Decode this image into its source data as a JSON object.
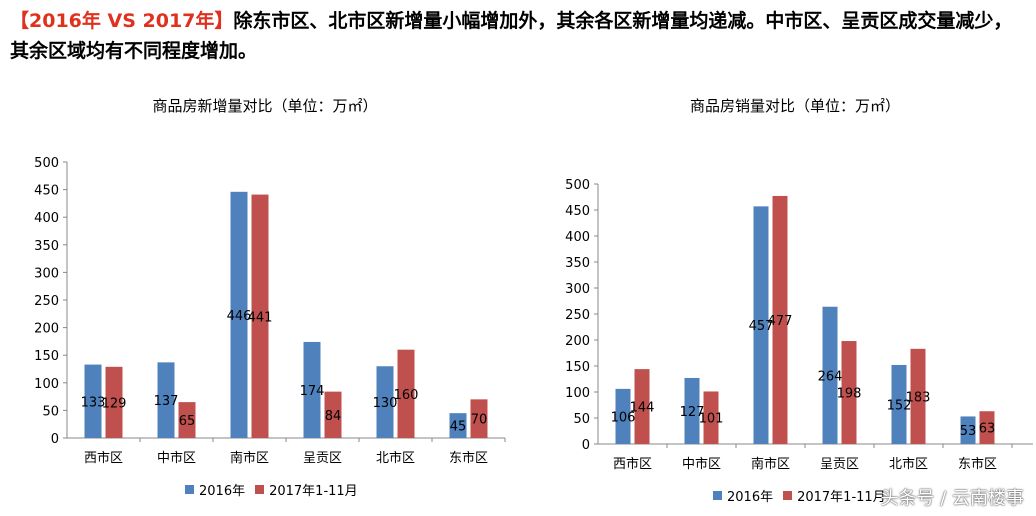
{
  "headline": {
    "accent": "【2016年 VS 2017年】",
    "text": "除东市区、北市区新增量小幅增加外，其余各区新增量均递减。中市区、呈贡区成交量减少，其余区域均有不同程度增加。"
  },
  "colors": {
    "series1": "#4f81bd",
    "series2": "#c0504d",
    "axis": "#888888"
  },
  "legend": {
    "series1": "2016年",
    "series2": "2017年1-11月"
  },
  "watermark": "头条号 / 云南楼事",
  "chart_data": [
    {
      "type": "bar",
      "title": "商品房新增量对比（单位：万㎡）",
      "categories": [
        "西市区",
        "中市区",
        "南市区",
        "呈贡区",
        "北市区",
        "东市区"
      ],
      "series": [
        {
          "name": "2016年",
          "values": [
            133,
            137,
            446,
            174,
            130,
            45
          ]
        },
        {
          "name": "2017年1-11月",
          "values": [
            129,
            65,
            441,
            84,
            160,
            70
          ]
        }
      ],
      "ylim": [
        0,
        500
      ],
      "yticks": [
        0,
        50,
        100,
        150,
        200,
        250,
        300,
        350,
        400,
        450,
        500
      ],
      "grid": false,
      "legend_position": "bottom"
    },
    {
      "type": "bar",
      "title": "商品房销量对比（单位：万㎡）",
      "categories": [
        "西市区",
        "中市区",
        "南市区",
        "呈贡区",
        "北市区",
        "东市区"
      ],
      "series": [
        {
          "name": "2016年",
          "values": [
            106,
            127,
            457,
            264,
            152,
            53
          ]
        },
        {
          "name": "2017年1-11月",
          "values": [
            144,
            101,
            477,
            198,
            183,
            63
          ]
        }
      ],
      "ylim": [
        0,
        500
      ],
      "yticks": [
        0,
        50,
        100,
        150,
        200,
        250,
        300,
        350,
        400,
        450,
        500
      ],
      "grid": false,
      "legend_position": "bottom"
    }
  ]
}
